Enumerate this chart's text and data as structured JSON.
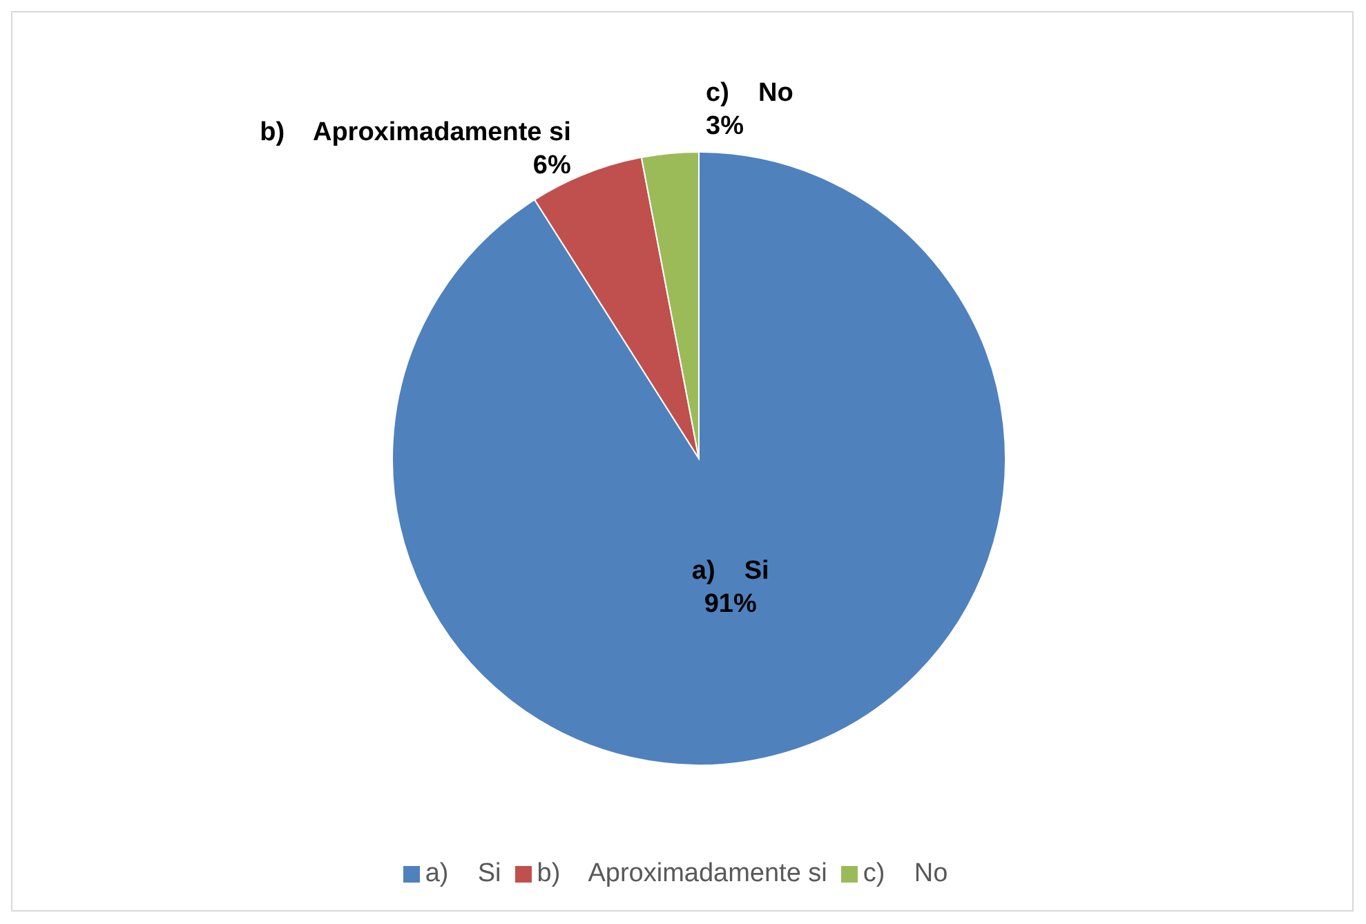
{
  "chart_data": {
    "type": "pie",
    "categories": [
      "a)    Si",
      "b)    Aproximadamente si",
      "c)    No"
    ],
    "values": [
      91,
      6,
      3
    ],
    "colors": [
      "#4f81bd",
      "#c0504d",
      "#9bbb59"
    ],
    "value_labels": [
      "91%",
      "6%",
      "3%"
    ],
    "legend": "bottom"
  }
}
